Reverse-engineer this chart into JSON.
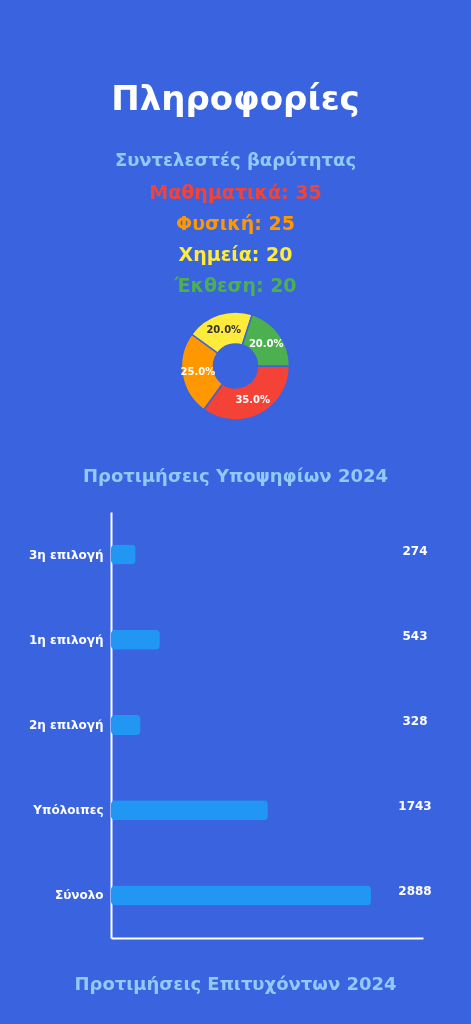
{
  "chart_data": [
    {
      "type": "donut",
      "title": "Συντελεστές βαρύτητας",
      "annotations": [
        "Πληροφορίες",
        "Μαθηματικά: 35",
        "Φυσική: 25",
        "Χημεία: 20",
        "Έκθεση: 20"
      ],
      "categories": [
        null,
        null,
        null,
        null
      ],
      "values": [
        35,
        25,
        20,
        20
      ],
      "colors": [
        "#f44336",
        "#ff9800",
        "#ffeb3b",
        "#4caf50"
      ],
      "value_labels": [
        "35.0%",
        "25.0%",
        "20.0%",
        "20.0%"
      ]
    },
    {
      "type": "bar",
      "orientation": "horizontal",
      "title": "Προτιμήσεις Υποψηφίων 2024",
      "annotations": [
        "Προτιμήσεις Επιτυχόντων 2024"
      ],
      "categories": [
        "3η επιλογή",
        "1η επιλογή",
        "2η επιλογή",
        "Υπόλοιπες",
        "Σύνολο"
      ],
      "values": [
        274,
        543,
        328,
        1743,
        2888
      ],
      "color": "#2196f3",
      "xlim": [
        0,
        3466
      ],
      "data_labels": true
    }
  ]
}
